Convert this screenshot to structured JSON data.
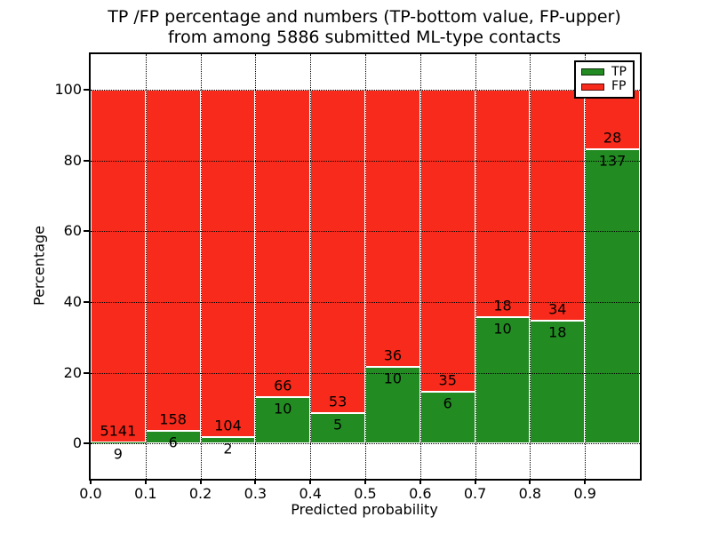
{
  "title": {
    "line1": "TP /FP percentage and numbers (TP-bottom value, FP-upper)",
    "line2": "from among 5886 submitted ML-type contacts"
  },
  "axes": {
    "xlabel": "Predicted probability",
    "ylabel": "Percentage",
    "x_tick_labels": [
      "0.0",
      "0.1",
      "0.2",
      "0.3",
      "0.4",
      "0.5",
      "0.6",
      "0.7",
      "0.8",
      "0.9"
    ],
    "y_tick_labels": [
      "0",
      "20",
      "40",
      "60",
      "80",
      "100"
    ]
  },
  "legend": {
    "items": [
      {
        "label": "TP",
        "color": "#228b22"
      },
      {
        "label": "FP",
        "color": "#f82a1b"
      }
    ]
  },
  "colors": {
    "tp": "#228b22",
    "fp": "#f82a1b",
    "bar_edge": "#ffffff",
    "grid": "#000000",
    "background": "#ffffff"
  },
  "chart_data": {
    "type": "bar",
    "stacked": true,
    "title": "TP /FP percentage and numbers (TP-bottom value, FP-upper) from among 5886 submitted ML-type contacts",
    "xlabel": "Predicted probability",
    "ylabel": "Percentage",
    "xlim": [
      0.0,
      1.0
    ],
    "ylim": [
      -10,
      110
    ],
    "y_ticks": [
      0,
      20,
      40,
      60,
      80,
      100
    ],
    "grid": "dotted",
    "legend_position": "upper right",
    "bin_edges": [
      0.0,
      0.1,
      0.2,
      0.3,
      0.4,
      0.5,
      0.6,
      0.7,
      0.8,
      0.9,
      1.0
    ],
    "categories": [
      "0.0-0.1",
      "0.1-0.2",
      "0.2-0.3",
      "0.3-0.4",
      "0.4-0.5",
      "0.5-0.6",
      "0.6-0.7",
      "0.7-0.8",
      "0.8-0.9",
      "0.9-1.0"
    ],
    "series": [
      {
        "name": "TP",
        "color": "#228b22",
        "counts": [
          9,
          6,
          2,
          10,
          5,
          10,
          6,
          10,
          18,
          137
        ],
        "percent": [
          0.17,
          3.66,
          1.89,
          13.16,
          8.62,
          21.74,
          14.63,
          35.71,
          34.62,
          83.03
        ]
      },
      {
        "name": "FP",
        "color": "#f82a1b",
        "counts": [
          5141,
          158,
          104,
          66,
          53,
          36,
          35,
          18,
          34,
          28
        ],
        "percent": [
          99.83,
          96.34,
          98.11,
          86.84,
          91.38,
          78.26,
          85.37,
          64.29,
          65.38,
          16.97
        ]
      }
    ],
    "total_contacts": 5886
  }
}
